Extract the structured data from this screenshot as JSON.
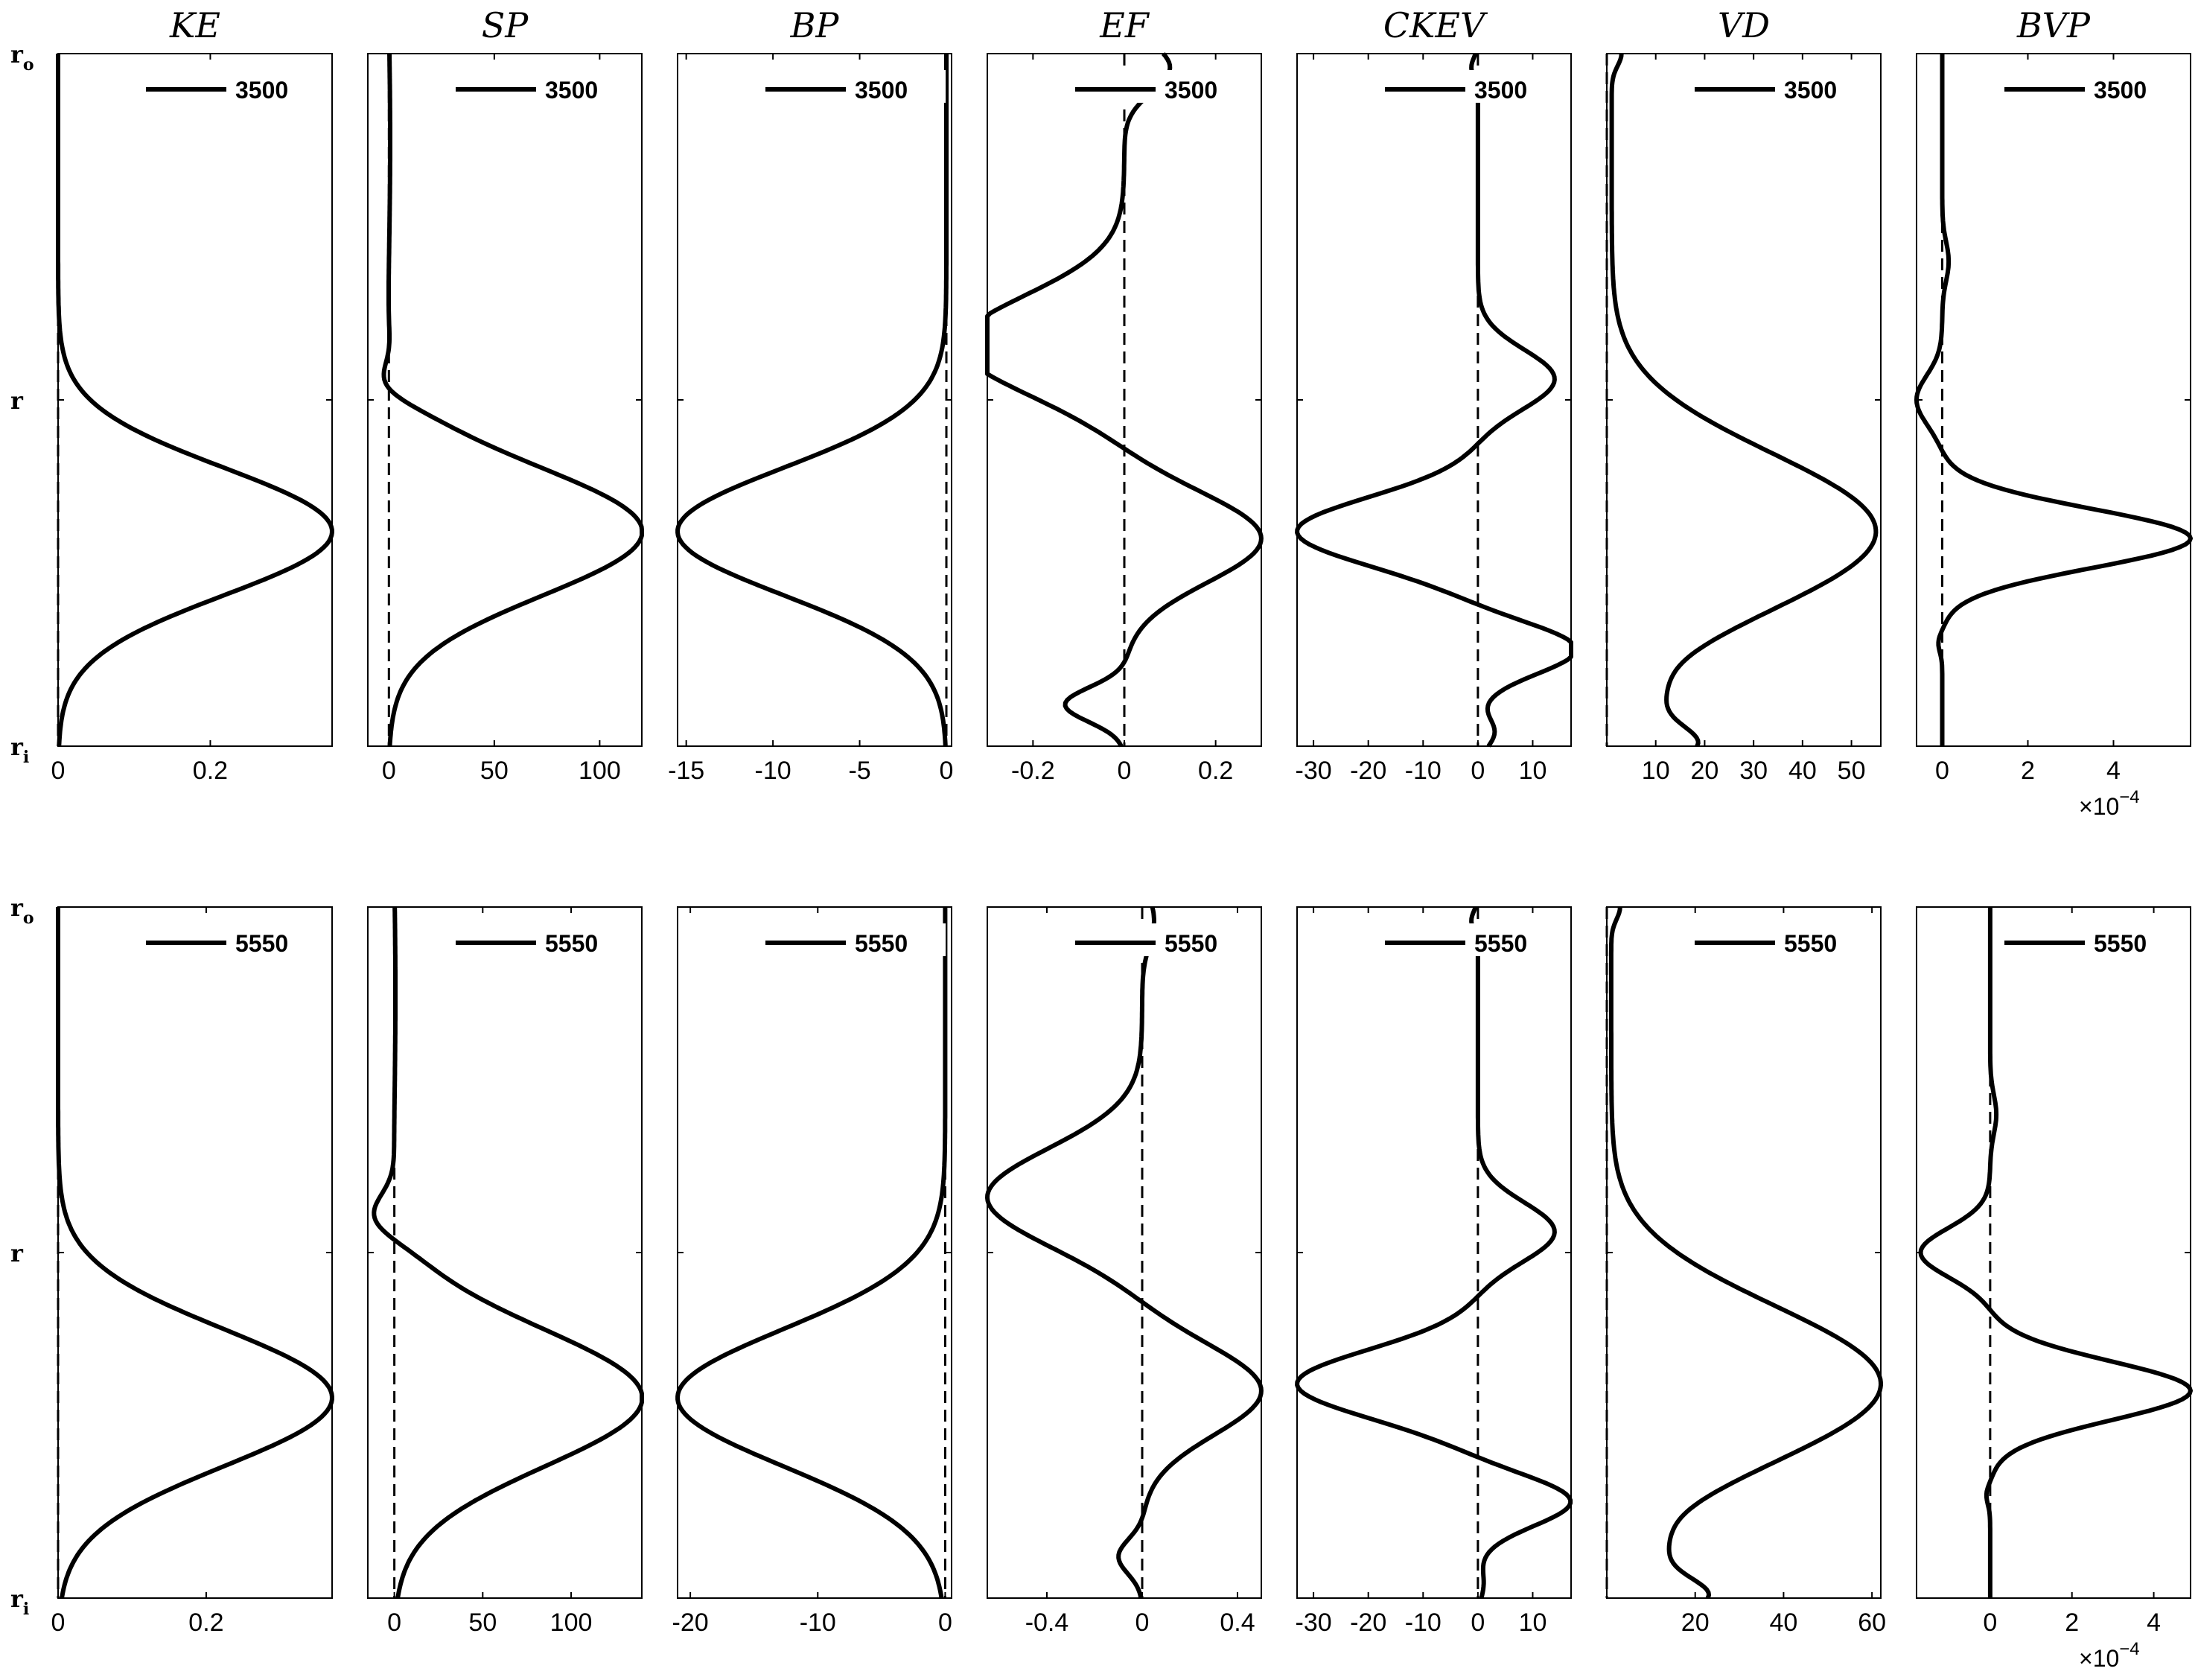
{
  "figure": {
    "y_labels": [
      {
        "base": "r",
        "sub": "o",
        "pos": 1.0
      },
      {
        "base": "r",
        "sub": "",
        "pos": 0.5
      },
      {
        "base": "r",
        "sub": "i",
        "pos": 0.0
      }
    ],
    "multiplier_base": "×10",
    "multiplier_exp": "−4"
  },
  "chart_data": [
    {
      "type": "line",
      "row": 0,
      "col": 0,
      "title": "KE",
      "legend": "3500",
      "xlim": [
        0,
        0.36
      ],
      "xticks": [
        0,
        0.2
      ],
      "ticklabels": [
        "0",
        "0.2"
      ],
      "shape": "gauss",
      "params": {
        "p": 0.36,
        "c": 0.31,
        "w": 0.13
      }
    },
    {
      "type": "line",
      "row": 0,
      "col": 1,
      "title": "SP",
      "legend": "3500",
      "xlim": [
        -10,
        120
      ],
      "xticks": [
        0,
        50,
        100
      ],
      "ticklabels": [
        "0",
        "50",
        "100"
      ],
      "shape": "sp",
      "params": {
        "p": 120,
        "c": 0.31,
        "w": 0.13,
        "n": -9,
        "nc": 0.52,
        "nw": 0.04
      }
    },
    {
      "type": "line",
      "row": 0,
      "col": 2,
      "title": "BP",
      "legend": "3500",
      "xlim": [
        -15.5,
        0.3
      ],
      "xticks": [
        -15,
        -10,
        -5,
        0
      ],
      "ticklabels": [
        "-15",
        "-10",
        "-5",
        "0"
      ],
      "shape": "gauss",
      "params": {
        "p": -15.5,
        "c": 0.31,
        "w": 0.13
      }
    },
    {
      "type": "line",
      "row": 0,
      "col": 3,
      "title": "EF",
      "legend": "3500",
      "xlim": [
        -0.3,
        0.3
      ],
      "xticks": [
        -0.2,
        0,
        0.2
      ],
      "ticklabels": [
        "-0.2",
        "0",
        "0.2"
      ],
      "shape": "ef",
      "params": {
        "a": 0.3,
        "b": 0.36,
        "c": 0.1,
        "d": -0.13
      }
    },
    {
      "type": "line",
      "row": 0,
      "col": 4,
      "title": "CKEV",
      "legend": "3500",
      "xlim": [
        -33,
        17
      ],
      "xticks": [
        -30,
        -20,
        -10,
        0,
        10
      ],
      "ticklabels": [
        "-30",
        "-20",
        "-10",
        "0",
        "10"
      ],
      "shape": "ckev",
      "params": {
        "a": -33,
        "b": 14,
        "c": 18,
        "e": 3
      }
    },
    {
      "type": "line",
      "row": 0,
      "col": 5,
      "title": "VD",
      "legend": "3500",
      "xlim": [
        0,
        56
      ],
      "xticks": [
        10,
        20,
        30,
        40,
        50
      ],
      "ticklabels": [
        "10",
        "20",
        "30",
        "40",
        "50"
      ],
      "shape": "vd",
      "params": {
        "p": 55,
        "bot": 16,
        "mn": 5
      }
    },
    {
      "type": "line",
      "row": 0,
      "col": 6,
      "title": "BVP",
      "legend": "3500",
      "xlim": [
        -0.6,
        5.8
      ],
      "xticks": [
        0,
        2,
        4
      ],
      "ticklabels": [
        "0",
        "2",
        "4"
      ],
      "shape": "bvp",
      "params": {
        "p": 5.8,
        "n": -0.6
      }
    },
    {
      "type": "line",
      "row": 1,
      "col": 0,
      "title": "",
      "legend": "5550",
      "xlim": [
        0,
        0.37
      ],
      "xticks": [
        0,
        0.2
      ],
      "ticklabels": [
        "0",
        "0.2"
      ],
      "shape": "gauss",
      "params": {
        "p": 0.37,
        "c": 0.29,
        "w": 0.14
      }
    },
    {
      "type": "line",
      "row": 1,
      "col": 1,
      "title": "",
      "legend": "5550",
      "xlim": [
        -15,
        140
      ],
      "xticks": [
        0,
        50,
        100
      ],
      "ticklabels": [
        "0",
        "50",
        "100"
      ],
      "shape": "sp",
      "params": {
        "p": 140,
        "c": 0.29,
        "w": 0.14,
        "n": -15,
        "nc": 0.55,
        "nw": 0.045
      }
    },
    {
      "type": "line",
      "row": 1,
      "col": 2,
      "title": "",
      "legend": "5550",
      "xlim": [
        -21,
        0.5
      ],
      "xticks": [
        -20,
        -10,
        0
      ],
      "ticklabels": [
        "-20",
        "-10",
        "0"
      ],
      "shape": "gauss",
      "params": {
        "p": -21,
        "c": 0.29,
        "w": 0.14
      }
    },
    {
      "type": "line",
      "row": 1,
      "col": 3,
      "title": "",
      "legend": "5550",
      "xlim": [
        -0.65,
        0.5
      ],
      "xticks": [
        -0.4,
        0,
        0.4
      ],
      "ticklabels": [
        "-0.4",
        "0",
        "0.4"
      ],
      "shape": "ef",
      "params": {
        "a": 0.5,
        "b": 0.65,
        "c": 0.05,
        "d": -0.1
      }
    },
    {
      "type": "line",
      "row": 1,
      "col": 4,
      "title": "",
      "legend": "5550",
      "xlim": [
        -33,
        17
      ],
      "xticks": [
        -30,
        -20,
        -10,
        0,
        10
      ],
      "ticklabels": [
        "-30",
        "-20",
        "-10",
        "0",
        "10"
      ],
      "shape": "ckev",
      "params": {
        "a": -33,
        "b": 14,
        "c": 17,
        "e": 1
      }
    },
    {
      "type": "line",
      "row": 1,
      "col": 5,
      "title": "",
      "legend": "5550",
      "xlim": [
        0,
        62
      ],
      "xticks": [
        20,
        40,
        60
      ],
      "ticklabels": [
        "20",
        "40",
        "60"
      ],
      "shape": "vd",
      "params": {
        "p": 62,
        "bot": 20,
        "mn": 6
      }
    },
    {
      "type": "line",
      "row": 1,
      "col": 6,
      "title": "",
      "legend": "5550",
      "xlim": [
        -1.8,
        4.9
      ],
      "xticks": [
        0,
        2,
        4
      ],
      "ticklabels": [
        "0",
        "2",
        "4"
      ],
      "shape": "bvp",
      "params": {
        "p": 4.9,
        "n": -1.7
      }
    }
  ]
}
